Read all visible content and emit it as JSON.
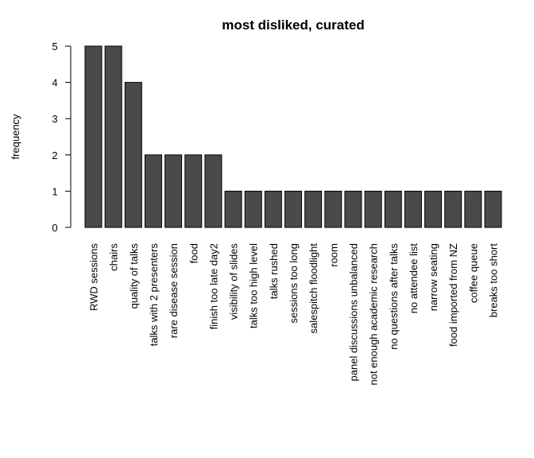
{
  "chart_data": {
    "type": "bar",
    "title": "most disliked, curated",
    "xlabel": "",
    "ylabel": "frequency",
    "ylim": [
      0,
      5
    ],
    "yticks": [
      0,
      1,
      2,
      3,
      4,
      5
    ],
    "grid": false,
    "legend": "none",
    "bar_color": "#4a4a4a",
    "categories": [
      "RWD sessions",
      "chairs",
      "quality of talks",
      "talks with 2 presenters",
      "rare disease session",
      "food",
      "finish too late day2",
      "visibility of slides",
      "talks too high level",
      "talks rushed",
      "sessions too long",
      "salespitch floodlight",
      "room",
      "panel discussions unbalanced",
      "not enough academic research",
      "no questions after talks",
      "no attendee list",
      "narrow seating",
      "food imported from NZ",
      "coffee queue",
      "breaks too short"
    ],
    "values": [
      5,
      5,
      4,
      2,
      2,
      2,
      2,
      1,
      1,
      1,
      1,
      1,
      1,
      1,
      1,
      1,
      1,
      1,
      1,
      1,
      1
    ]
  }
}
